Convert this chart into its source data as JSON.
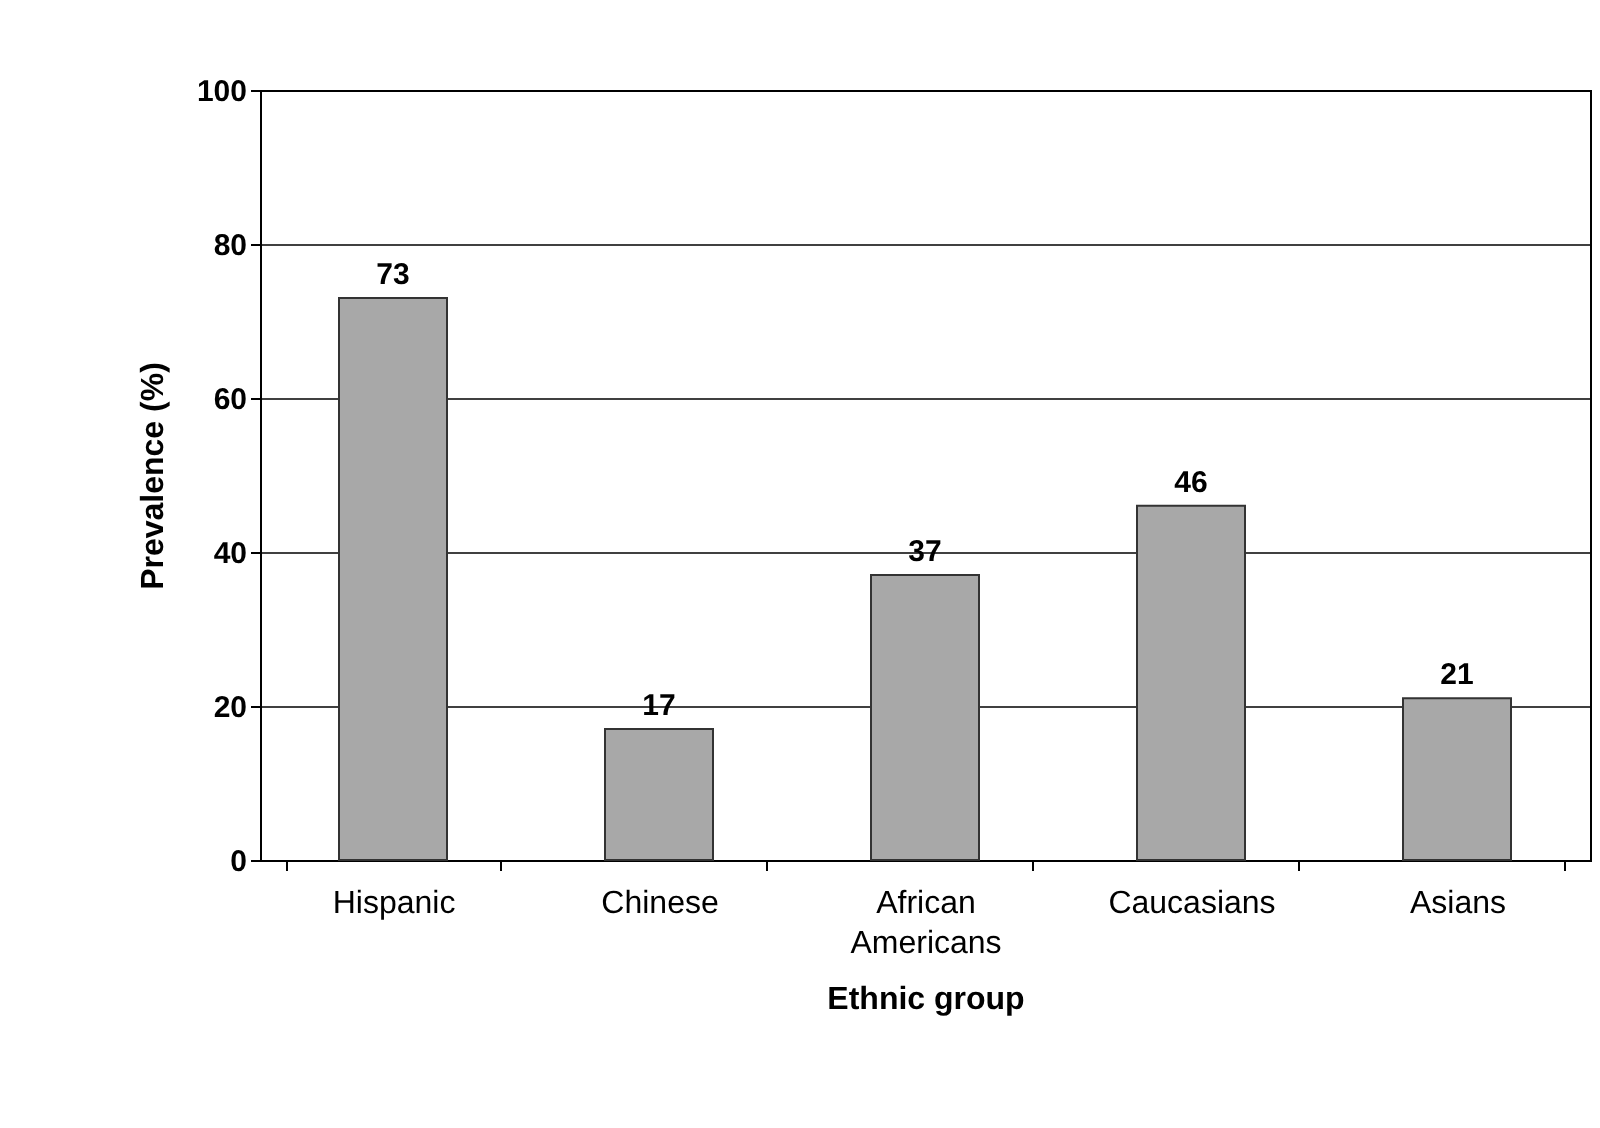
{
  "chart_data": {
    "type": "bar",
    "xlabel": "Ethnic group",
    "ylabel": "Prevalence (%)",
    "categories": [
      "Hispanic",
      "Chinese",
      "African Americans",
      "Caucasians",
      "Asians"
    ],
    "values": [
      73,
      17,
      37,
      46,
      21
    ],
    "color": "#a8a8a8",
    "ylim": [
      0,
      100
    ],
    "yticks": [
      0,
      20,
      40,
      60,
      80,
      100
    ],
    "grid": "y",
    "data_labels": true
  }
}
